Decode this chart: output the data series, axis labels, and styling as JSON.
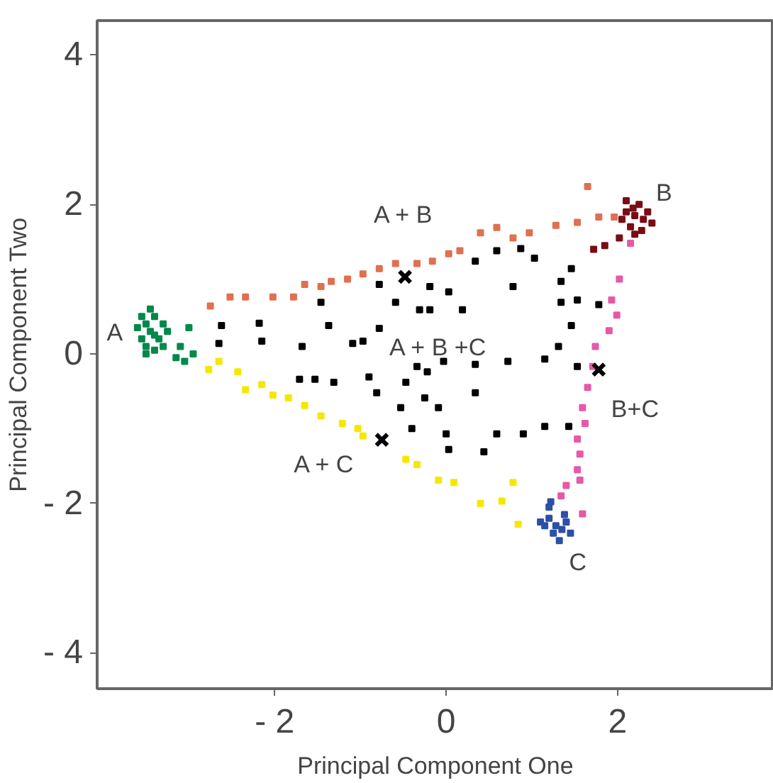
{
  "chart_data": {
    "type": "scatter",
    "xlabel": "Principal Component One",
    "ylabel": "Principal Component Two",
    "xlim": [
      -4.07,
      3.82
    ],
    "ylim": [
      -4.48,
      4.46
    ],
    "xticks": [
      {
        "value": -2,
        "label": "- 2"
      },
      0,
      2
    ],
    "yticks": [
      {
        "value": -4,
        "label": "- 4"
      },
      {
        "value": -2,
        "label": "- 2"
      },
      0,
      2,
      4
    ],
    "grid": false,
    "legend": false,
    "marker": "square",
    "series": [
      {
        "name": "A",
        "color": "#00894a",
        "x": [
          -3.5,
          -3.45,
          -3.4,
          -3.55,
          -3.5,
          -3.35,
          -3.6,
          -3.4,
          -3.3,
          -3.45,
          -3.55,
          -3.3,
          -3.5,
          -3.25,
          -3.4,
          -3.1,
          -3.0,
          -2.95,
          -3.05,
          -3.15
        ],
        "values": [
          0.4,
          0.3,
          0.5,
          0.2,
          0.1,
          0.2,
          0.35,
          0.05,
          0.4,
          0.6,
          0.5,
          0.1,
          0.0,
          0.3,
          0.25,
          0.1,
          0.35,
          0.0,
          -0.1,
          -0.05
        ]
      },
      {
        "name": "A + B",
        "color": "#e07050",
        "x": [
          -2.75,
          -2.52,
          -2.34,
          -2.02,
          -1.78,
          -1.65,
          -1.46,
          -1.34,
          -1.15,
          -0.97,
          -0.78,
          -0.59,
          -0.34,
          -0.16,
          0.03,
          0.16,
          0.4,
          0.59,
          0.78,
          0.97,
          1.28,
          1.53,
          1.65,
          1.78,
          1.96
        ],
        "values": [
          0.64,
          0.76,
          0.76,
          0.76,
          0.76,
          0.93,
          0.9,
          0.97,
          1.0,
          1.07,
          1.14,
          1.21,
          1.21,
          1.24,
          1.34,
          1.38,
          1.62,
          1.69,
          1.55,
          1.62,
          1.72,
          1.76,
          2.24,
          1.83,
          1.83
        ]
      },
      {
        "name": "A + C",
        "color": "#f5e800",
        "x": [
          -2.77,
          -2.65,
          -2.43,
          -2.34,
          -2.15,
          -2.02,
          -1.84,
          -1.65,
          -1.46,
          -1.21,
          -1.03,
          -0.97,
          -0.47,
          -0.34,
          -0.09,
          0.09,
          0.4,
          0.65,
          0.78,
          0.84
        ],
        "values": [
          -0.21,
          -0.1,
          -0.24,
          -0.48,
          -0.41,
          -0.55,
          -0.59,
          -0.69,
          -0.83,
          -0.93,
          -1.0,
          -1.1,
          -1.41,
          -1.48,
          -1.69,
          -1.72,
          -2.0,
          -1.97,
          -1.72,
          -2.28
        ]
      },
      {
        "name": "B+C",
        "color": "#e65aa5",
        "x": [
          2.15,
          2.02,
          1.93,
          1.99,
          1.9,
          1.74,
          1.71,
          1.65,
          1.59,
          1.62,
          1.53,
          1.56,
          1.53,
          1.4,
          1.34,
          1.59,
          1.56
        ],
        "values": [
          1.48,
          1.0,
          0.72,
          0.52,
          0.31,
          0.1,
          -0.17,
          -0.45,
          -0.72,
          -0.93,
          -1.14,
          -1.34,
          -1.55,
          -1.76,
          -1.9,
          -2.14,
          -1.69
        ]
      },
      {
        "name": "A + B +C",
        "color": "#000000",
        "x": [
          -2.62,
          -2.65,
          -2.18,
          -2.15,
          -1.68,
          -1.37,
          -1.09,
          -0.97,
          -0.78,
          -1.71,
          -1.53,
          -1.31,
          -0.9,
          -0.81,
          -0.53,
          -0.47,
          -0.34,
          -0.22,
          -0.25,
          -0.03,
          -0.09,
          -0.4,
          0.0,
          0.03,
          0.44,
          0.59,
          0.9,
          1.15,
          1.43,
          0.34,
          0.34,
          0.72,
          1.15,
          1.53,
          1.31,
          1.46,
          1.34,
          1.53,
          1.78,
          1.34,
          1.46,
          0.78,
          1.03,
          0.87,
          0.59,
          0.34,
          -0.19,
          0.03,
          -0.31,
          -0.19,
          0.19,
          -0.59,
          -1.46,
          -0.78
        ],
        "values": [
          0.38,
          0.14,
          0.41,
          0.17,
          0.1,
          0.38,
          0.14,
          0.17,
          0.34,
          -0.34,
          -0.34,
          -0.38,
          -0.31,
          -0.52,
          -0.72,
          -0.38,
          -0.17,
          -0.24,
          -0.59,
          -0.1,
          -0.72,
          -1.0,
          -1.07,
          -1.28,
          -1.31,
          -1.07,
          -1.07,
          -0.97,
          -0.97,
          -0.14,
          -0.52,
          -0.1,
          -0.07,
          -0.17,
          0.1,
          0.38,
          0.69,
          0.72,
          0.66,
          0.97,
          1.14,
          0.9,
          1.28,
          1.41,
          1.38,
          1.24,
          0.9,
          0.83,
          0.59,
          0.59,
          0.59,
          0.69,
          0.69,
          0.93
        ]
      },
      {
        "name": "B",
        "color": "#7a0d14",
        "x": [
          2.2,
          2.1,
          2.3,
          2.25,
          2.15,
          2.35,
          2.05,
          2.2,
          2.4,
          2.1,
          2.28,
          2.18,
          2.02,
          1.85,
          1.72
        ],
        "values": [
          1.85,
          1.9,
          1.8,
          2.0,
          1.7,
          1.9,
          1.8,
          1.6,
          1.75,
          2.05,
          1.65,
          1.95,
          1.55,
          1.45,
          1.4
        ]
      },
      {
        "name": "C",
        "color": "#2c4fa8",
        "x": [
          1.28,
          1.2,
          1.35,
          1.4,
          1.15,
          1.25,
          1.38,
          1.2,
          1.45,
          1.1,
          1.32,
          1.22
        ],
        "values": [
          -2.3,
          -2.2,
          -2.35,
          -2.25,
          -2.3,
          -2.4,
          -2.15,
          -2.05,
          -2.4,
          -2.25,
          -2.5,
          -1.98
        ]
      },
      {
        "color": "#000000",
        "marker": "cross",
        "x": [
          -0.48,
          -0.75,
          1.78
        ],
        "values": [
          1.03,
          -1.15,
          -0.21
        ]
      }
    ]
  }
}
